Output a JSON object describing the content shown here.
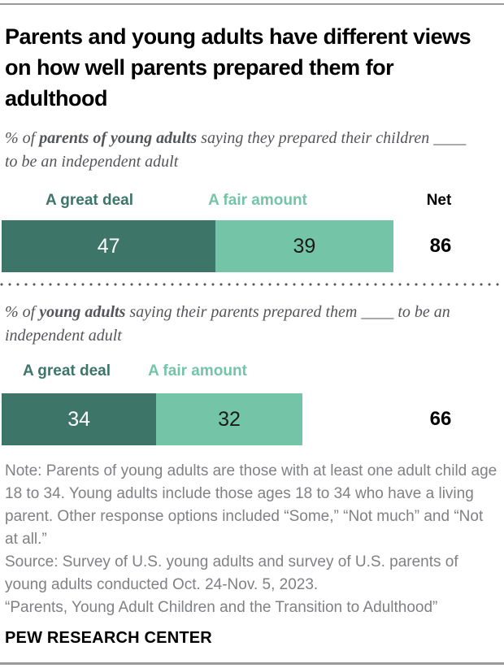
{
  "title": "Parents and young adults have different views on how well parents prepared them for adulthood",
  "colors": {
    "dark_green": "#3d7668",
    "light_green": "#74c5a7",
    "rule_gray": "#9a9a9a",
    "subtitle_gray": "#54555a",
    "note_gray": "#808184"
  },
  "chart_data": [
    {
      "type": "bar",
      "stacked": true,
      "orientation": "horizontal",
      "title": "% of parents of young adults saying they prepared their children ____ to be an independent adult",
      "subtitle_parts": {
        "prefix": "% of ",
        "bold": "parents of young adults",
        "rest": " saying they prepared their children ____ to be an independent adult"
      },
      "categories": [
        "A great deal",
        "A fair amount"
      ],
      "values": [
        47,
        39
      ],
      "net_label": "Net",
      "net": 86,
      "xlim": [
        0,
        100
      ],
      "bar_colors": [
        "#3d7668",
        "#74c5a7"
      ],
      "value_label_colors": [
        "#ffffff",
        "#1a1a1a"
      ]
    },
    {
      "type": "bar",
      "stacked": true,
      "orientation": "horizontal",
      "title": "% of young adults saying their parents prepared them ____ to be an independent adult",
      "subtitle_parts": {
        "prefix": "% of ",
        "bold": "young adults",
        "rest": " saying their parents prepared them ____ to be an independent adult"
      },
      "categories": [
        "A great deal",
        "A fair amount"
      ],
      "values": [
        34,
        32
      ],
      "net_label": "",
      "net": 66,
      "xlim": [
        0,
        100
      ],
      "bar_colors": [
        "#3d7668",
        "#74c5a7"
      ],
      "value_label_colors": [
        "#ffffff",
        "#1a1a1a"
      ]
    }
  ],
  "footer": {
    "note": "Note: Parents of young adults are those with at least one adult child age 18 to 34. Young adults include those ages 18 to 34 who have a living parent. Other response options included “Some,” “Not much” and “Not at all.”",
    "source": "Source: Survey of U.S. young adults and survey of U.S. parents of young adults conducted Oct. 24-Nov. 5, 2023.",
    "report": "“Parents, Young Adult Children and the Transition to Adulthood”",
    "brand": "PEW RESEARCH CENTER"
  }
}
